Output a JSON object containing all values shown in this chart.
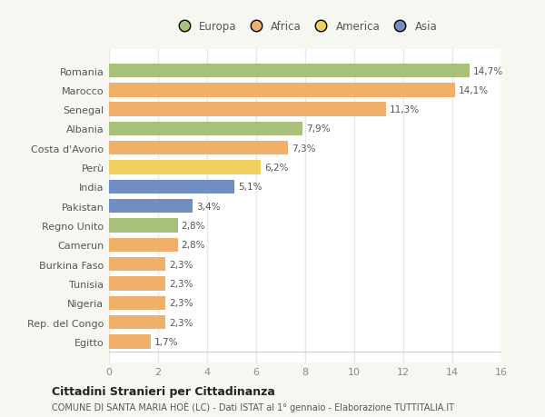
{
  "countries": [
    "Romania",
    "Marocco",
    "Senegal",
    "Albania",
    "Costa d'Avorio",
    "Perù",
    "India",
    "Pakistan",
    "Regno Unito",
    "Camerun",
    "Burkina Faso",
    "Tunisia",
    "Nigeria",
    "Rep. del Congo",
    "Egitto"
  ],
  "values": [
    14.7,
    14.1,
    11.3,
    7.9,
    7.3,
    6.2,
    5.1,
    3.4,
    2.8,
    2.8,
    2.3,
    2.3,
    2.3,
    2.3,
    1.7
  ],
  "labels": [
    "14,7%",
    "14,1%",
    "11,3%",
    "7,9%",
    "7,3%",
    "6,2%",
    "5,1%",
    "3,4%",
    "2,8%",
    "2,8%",
    "2,3%",
    "2,3%",
    "2,3%",
    "2,3%",
    "1,7%"
  ],
  "continents": [
    "Europa",
    "Africa",
    "Africa",
    "Europa",
    "Africa",
    "America",
    "Asia",
    "Asia",
    "Europa",
    "Africa",
    "Africa",
    "Africa",
    "Africa",
    "Africa",
    "Africa"
  ],
  "continent_colors": {
    "Europa": "#a8c07a",
    "Africa": "#f0b06a",
    "America": "#f0d060",
    "Asia": "#6e8ec4"
  },
  "legend_items": [
    "Europa",
    "Africa",
    "America",
    "Asia"
  ],
  "title": "Cittadini Stranieri per Cittadinanza",
  "subtitle": "COMUNE DI SANTA MARIA HOÈ (LC) - Dati ISTAT al 1° gennaio - Elaborazione TUTTITALIA.IT",
  "xlim": [
    0,
    16
  ],
  "xticks": [
    0,
    2,
    4,
    6,
    8,
    10,
    12,
    14,
    16
  ],
  "background_color": "#f7f7f2",
  "plot_bg_color": "#ffffff",
  "grid_color": "#e8e8e8",
  "bar_height": 0.72
}
